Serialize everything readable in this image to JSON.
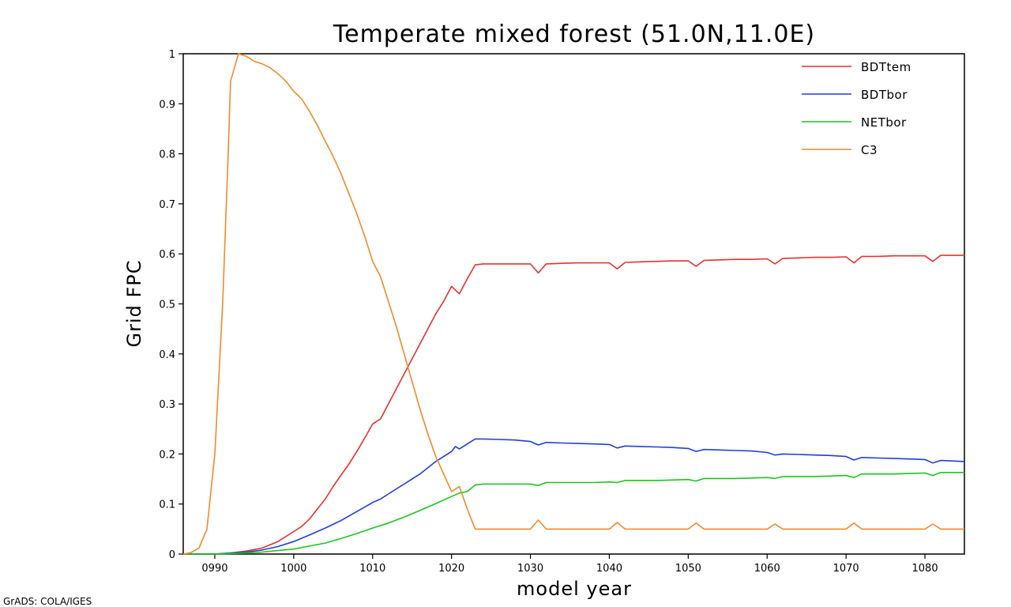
{
  "chart_data": {
    "type": "line",
    "title": "Temperate mixed forest (51.0N,11.0E)",
    "xlabel": "model year",
    "ylabel": "Grid FPC",
    "xlim": [
      986,
      1085
    ],
    "ylim": [
      0,
      1
    ],
    "xticks": [
      990,
      1000,
      1010,
      1020,
      1030,
      1040,
      1050,
      1060,
      1070,
      1080
    ],
    "xtick_labels": [
      "0990",
      "1000",
      "1010",
      "1020",
      "1030",
      "1040",
      "1050",
      "1060",
      "1070",
      "1080"
    ],
    "yticks": [
      0,
      0.1,
      0.2,
      0.3,
      0.4,
      0.5,
      0.6,
      0.7,
      0.8,
      0.9,
      1
    ],
    "ytick_labels": [
      "0",
      "0.1",
      "0.2",
      "0.3",
      "0.4",
      "0.5",
      "0.6",
      "0.7",
      "0.8",
      "0.9",
      "1"
    ],
    "grid": false,
    "legend_position": "top-right",
    "series": [
      {
        "name": "BDTtem",
        "color": "#e8322e",
        "points": [
          [
            986,
            0
          ],
          [
            990,
            0
          ],
          [
            992,
            0.002
          ],
          [
            994,
            0.006
          ],
          [
            996,
            0.012
          ],
          [
            998,
            0.025
          ],
          [
            1000,
            0.045
          ],
          [
            1001,
            0.055
          ],
          [
            1002,
            0.07
          ],
          [
            1003,
            0.09
          ],
          [
            1004,
            0.11
          ],
          [
            1005,
            0.135
          ],
          [
            1006,
            0.158
          ],
          [
            1007,
            0.18
          ],
          [
            1008,
            0.205
          ],
          [
            1009,
            0.232
          ],
          [
            1010,
            0.26
          ],
          [
            1011,
            0.27
          ],
          [
            1012,
            0.3
          ],
          [
            1013,
            0.33
          ],
          [
            1014,
            0.36
          ],
          [
            1015,
            0.39
          ],
          [
            1016,
            0.42
          ],
          [
            1017,
            0.45
          ],
          [
            1018,
            0.48
          ],
          [
            1019,
            0.505
          ],
          [
            1020,
            0.535
          ],
          [
            1021,
            0.52
          ],
          [
            1022,
            0.55
          ],
          [
            1023,
            0.578
          ],
          [
            1024,
            0.58
          ],
          [
            1026,
            0.58
          ],
          [
            1028,
            0.58
          ],
          [
            1030,
            0.58
          ],
          [
            1031,
            0.562
          ],
          [
            1032,
            0.58
          ],
          [
            1034,
            0.581
          ],
          [
            1036,
            0.582
          ],
          [
            1038,
            0.582
          ],
          [
            1040,
            0.582
          ],
          [
            1041,
            0.57
          ],
          [
            1042,
            0.583
          ],
          [
            1044,
            0.584
          ],
          [
            1046,
            0.585
          ],
          [
            1048,
            0.586
          ],
          [
            1050,
            0.586
          ],
          [
            1051,
            0.575
          ],
          [
            1052,
            0.587
          ],
          [
            1054,
            0.588
          ],
          [
            1056,
            0.589
          ],
          [
            1058,
            0.589
          ],
          [
            1060,
            0.59
          ],
          [
            1061,
            0.58
          ],
          [
            1062,
            0.591
          ],
          [
            1064,
            0.592
          ],
          [
            1066,
            0.593
          ],
          [
            1068,
            0.593
          ],
          [
            1070,
            0.594
          ],
          [
            1071,
            0.582
          ],
          [
            1072,
            0.595
          ],
          [
            1074,
            0.595
          ],
          [
            1076,
            0.596
          ],
          [
            1078,
            0.596
          ],
          [
            1080,
            0.596
          ],
          [
            1081,
            0.585
          ],
          [
            1082,
            0.597
          ],
          [
            1085,
            0.597
          ]
        ]
      },
      {
        "name": "BDTbor",
        "color": "#1f3fe0",
        "points": [
          [
            986,
            0
          ],
          [
            990,
            0
          ],
          [
            992,
            0.002
          ],
          [
            994,
            0.004
          ],
          [
            996,
            0.008
          ],
          [
            998,
            0.015
          ],
          [
            1000,
            0.025
          ],
          [
            1002,
            0.038
          ],
          [
            1004,
            0.052
          ],
          [
            1006,
            0.067
          ],
          [
            1008,
            0.085
          ],
          [
            1010,
            0.103
          ],
          [
            1011,
            0.11
          ],
          [
            1012,
            0.12
          ],
          [
            1014,
            0.14
          ],
          [
            1016,
            0.16
          ],
          [
            1018,
            0.185
          ],
          [
            1020,
            0.205
          ],
          [
            1020.5,
            0.215
          ],
          [
            1021,
            0.21
          ],
          [
            1022,
            0.22
          ],
          [
            1023,
            0.23
          ],
          [
            1024,
            0.23
          ],
          [
            1026,
            0.229
          ],
          [
            1028,
            0.228
          ],
          [
            1030,
            0.225
          ],
          [
            1031,
            0.218
          ],
          [
            1032,
            0.223
          ],
          [
            1034,
            0.222
          ],
          [
            1036,
            0.221
          ],
          [
            1038,
            0.22
          ],
          [
            1040,
            0.219
          ],
          [
            1041,
            0.212
          ],
          [
            1042,
            0.216
          ],
          [
            1044,
            0.215
          ],
          [
            1046,
            0.214
          ],
          [
            1048,
            0.213
          ],
          [
            1050,
            0.211
          ],
          [
            1051,
            0.205
          ],
          [
            1052,
            0.209
          ],
          [
            1054,
            0.208
          ],
          [
            1056,
            0.207
          ],
          [
            1058,
            0.206
          ],
          [
            1060,
            0.203
          ],
          [
            1061,
            0.198
          ],
          [
            1062,
            0.2
          ],
          [
            1064,
            0.199
          ],
          [
            1066,
            0.198
          ],
          [
            1068,
            0.197
          ],
          [
            1070,
            0.195
          ],
          [
            1071,
            0.188
          ],
          [
            1072,
            0.193
          ],
          [
            1074,
            0.192
          ],
          [
            1076,
            0.191
          ],
          [
            1078,
            0.19
          ],
          [
            1080,
            0.189
          ],
          [
            1081,
            0.182
          ],
          [
            1082,
            0.187
          ],
          [
            1085,
            0.185
          ]
        ]
      },
      {
        "name": "NETbor",
        "color": "#1ec41e",
        "points": [
          [
            986,
            0
          ],
          [
            990,
            0
          ],
          [
            992,
            0.001
          ],
          [
            994,
            0.002
          ],
          [
            996,
            0.004
          ],
          [
            998,
            0.007
          ],
          [
            1000,
            0.01
          ],
          [
            1002,
            0.016
          ],
          [
            1004,
            0.022
          ],
          [
            1006,
            0.031
          ],
          [
            1008,
            0.041
          ],
          [
            1010,
            0.052
          ],
          [
            1012,
            0.062
          ],
          [
            1014,
            0.074
          ],
          [
            1016,
            0.087
          ],
          [
            1018,
            0.101
          ],
          [
            1020,
            0.115
          ],
          [
            1021,
            0.122
          ],
          [
            1022,
            0.125
          ],
          [
            1023,
            0.138
          ],
          [
            1024,
            0.14
          ],
          [
            1026,
            0.14
          ],
          [
            1028,
            0.14
          ],
          [
            1030,
            0.14
          ],
          [
            1031,
            0.137
          ],
          [
            1032,
            0.143
          ],
          [
            1034,
            0.143
          ],
          [
            1036,
            0.143
          ],
          [
            1038,
            0.143
          ],
          [
            1040,
            0.144
          ],
          [
            1041,
            0.143
          ],
          [
            1042,
            0.147
          ],
          [
            1044,
            0.147
          ],
          [
            1046,
            0.147
          ],
          [
            1048,
            0.148
          ],
          [
            1050,
            0.149
          ],
          [
            1051,
            0.146
          ],
          [
            1052,
            0.151
          ],
          [
            1054,
            0.151
          ],
          [
            1056,
            0.151
          ],
          [
            1058,
            0.152
          ],
          [
            1060,
            0.153
          ],
          [
            1061,
            0.151
          ],
          [
            1062,
            0.155
          ],
          [
            1064,
            0.155
          ],
          [
            1066,
            0.155
          ],
          [
            1068,
            0.156
          ],
          [
            1070,
            0.157
          ],
          [
            1071,
            0.153
          ],
          [
            1072,
            0.16
          ],
          [
            1074,
            0.16
          ],
          [
            1076,
            0.16
          ],
          [
            1078,
            0.161
          ],
          [
            1080,
            0.162
          ],
          [
            1081,
            0.157
          ],
          [
            1082,
            0.163
          ],
          [
            1085,
            0.163
          ]
        ]
      },
      {
        "name": "C3",
        "color": "#f08a2c",
        "points": [
          [
            986,
            0
          ],
          [
            987,
            0.003
          ],
          [
            988,
            0.012
          ],
          [
            989,
            0.05
          ],
          [
            990,
            0.2
          ],
          [
            991,
            0.5
          ],
          [
            991.7,
            0.8
          ],
          [
            992,
            0.945
          ],
          [
            993,
            1
          ],
          [
            994,
            0.995
          ],
          [
            995,
            0.985
          ],
          [
            996,
            0.98
          ],
          [
            997,
            0.972
          ],
          [
            998,
            0.96
          ],
          [
            999,
            0.945
          ],
          [
            1000,
            0.925
          ],
          [
            1001,
            0.91
          ],
          [
            1002,
            0.885
          ],
          [
            1003,
            0.857
          ],
          [
            1004,
            0.825
          ],
          [
            1005,
            0.795
          ],
          [
            1006,
            0.76
          ],
          [
            1007,
            0.72
          ],
          [
            1008,
            0.68
          ],
          [
            1009,
            0.635
          ],
          [
            1010,
            0.585
          ],
          [
            1011,
            0.555
          ],
          [
            1012,
            0.505
          ],
          [
            1013,
            0.455
          ],
          [
            1014,
            0.4
          ],
          [
            1015,
            0.345
          ],
          [
            1016,
            0.29
          ],
          [
            1017,
            0.24
          ],
          [
            1018,
            0.195
          ],
          [
            1019,
            0.16
          ],
          [
            1020,
            0.125
          ],
          [
            1021,
            0.135
          ],
          [
            1022,
            0.09
          ],
          [
            1023,
            0.05
          ],
          [
            1024,
            0.05
          ],
          [
            1026,
            0.05
          ],
          [
            1028,
            0.05
          ],
          [
            1030,
            0.05
          ],
          [
            1031,
            0.068
          ],
          [
            1032,
            0.05
          ],
          [
            1034,
            0.05
          ],
          [
            1036,
            0.05
          ],
          [
            1038,
            0.05
          ],
          [
            1040,
            0.05
          ],
          [
            1041,
            0.063
          ],
          [
            1042,
            0.05
          ],
          [
            1044,
            0.05
          ],
          [
            1046,
            0.05
          ],
          [
            1048,
            0.05
          ],
          [
            1050,
            0.05
          ],
          [
            1051,
            0.062
          ],
          [
            1052,
            0.05
          ],
          [
            1054,
            0.05
          ],
          [
            1056,
            0.05
          ],
          [
            1058,
            0.05
          ],
          [
            1060,
            0.05
          ],
          [
            1061,
            0.06
          ],
          [
            1062,
            0.05
          ],
          [
            1064,
            0.05
          ],
          [
            1066,
            0.05
          ],
          [
            1068,
            0.05
          ],
          [
            1070,
            0.05
          ],
          [
            1071,
            0.062
          ],
          [
            1072,
            0.05
          ],
          [
            1074,
            0.05
          ],
          [
            1076,
            0.05
          ],
          [
            1078,
            0.05
          ],
          [
            1080,
            0.05
          ],
          [
            1081,
            0.06
          ],
          [
            1082,
            0.05
          ],
          [
            1085,
            0.05
          ]
        ]
      }
    ]
  },
  "footer": {
    "credit": "GrADS: COLA/IGES"
  }
}
